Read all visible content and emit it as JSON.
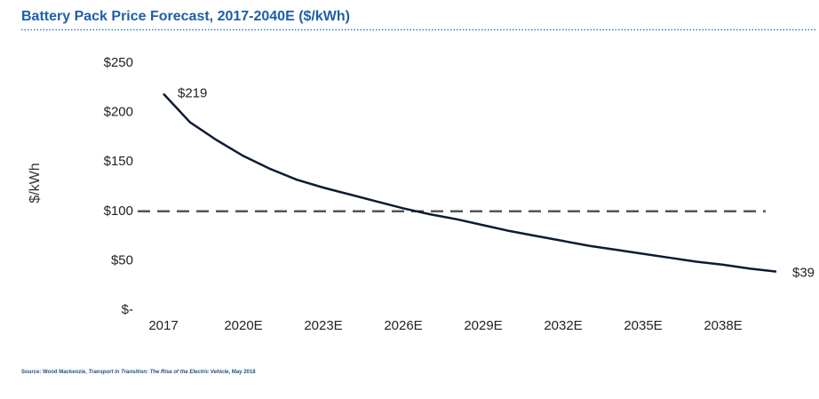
{
  "chart_data": {
    "type": "line",
    "title": "Battery Pack Price Forecast, 2017-2040E ($/kWh)",
    "ylabel": "$/kWh",
    "categories": [
      "2017",
      null,
      null,
      "2020E",
      null,
      null,
      "2023E",
      null,
      null,
      "2026E",
      null,
      null,
      "2029E",
      null,
      null,
      "2032E",
      null,
      null,
      "2035E",
      null,
      null,
      "2038E",
      null,
      null
    ],
    "series": [
      {
        "color": "#0d1b33",
        "values": [
          219,
          190,
          172,
          156,
          143,
          132,
          124,
          117,
          110,
          103,
          97,
          92,
          86,
          80,
          75,
          70,
          65,
          61,
          57,
          53,
          49,
          46,
          42,
          39
        ],
        "value_labels": [
          "$219",
          null,
          null,
          null,
          null,
          null,
          null,
          null,
          null,
          null,
          null,
          null,
          null,
          null,
          null,
          null,
          null,
          null,
          null,
          null,
          null,
          null,
          null,
          "$39"
        ]
      }
    ],
    "reference_line": {
      "value": 100,
      "color": "#555555"
    },
    "ylim": [
      0,
      250
    ],
    "yticks": [
      {
        "value": 0,
        "label": "$-"
      },
      {
        "value": 50,
        "label": "$50"
      },
      {
        "value": 100,
        "label": "$100"
      },
      {
        "value": 150,
        "label": "$150"
      },
      {
        "value": 200,
        "label": "$200"
      },
      {
        "value": 250,
        "label": "$250"
      }
    ],
    "source": [
      "Source: Wood Mackenzie, ",
      "Transport in Transition: The Rise of the Electric Vehicle",
      ", May 2018"
    ]
  }
}
